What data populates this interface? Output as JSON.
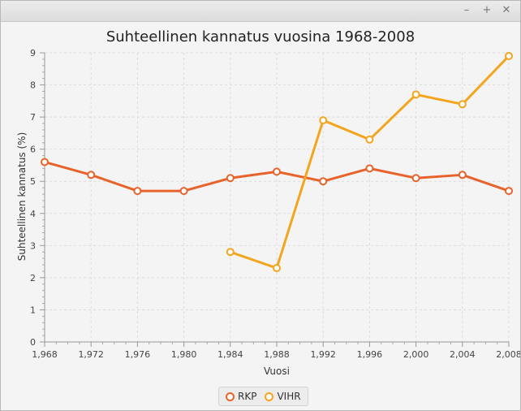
{
  "window": {
    "minimize_glyph": "–",
    "maximize_glyph": "+",
    "close_glyph": "✕"
  },
  "chart_data": {
    "type": "line",
    "title": "Suhteellinen kannatus vuosina 1968-2008",
    "xlabel": "Vuosi",
    "ylabel": "Suhteellinen kannatus (%)",
    "xlim": [
      1968,
      2008
    ],
    "ylim": [
      0,
      9
    ],
    "x_ticks": [
      "1,968",
      "1,972",
      "1,976",
      "1,980",
      "1,984",
      "1,988",
      "1,992",
      "1,996",
      "2,000",
      "2,004",
      "2,008"
    ],
    "y_ticks": [
      "0",
      "1",
      "2",
      "3",
      "4",
      "5",
      "6",
      "7",
      "8",
      "9"
    ],
    "grid": true,
    "legend_position": "bottom",
    "series": [
      {
        "name": "RKP",
        "color": "#e8632b",
        "x": [
          1968,
          1972,
          1976,
          1980,
          1984,
          1988,
          1992,
          1996,
          2000,
          2004,
          2008
        ],
        "values": [
          5.6,
          5.2,
          4.7,
          4.7,
          5.1,
          5.3,
          5.0,
          5.4,
          5.1,
          5.2,
          4.7
        ]
      },
      {
        "name": "VIHR",
        "color": "#f3a51f",
        "x": [
          1984,
          1988,
          1992,
          1996,
          2000,
          2004,
          2008
        ],
        "values": [
          2.8,
          2.3,
          6.9,
          6.3,
          7.7,
          7.4,
          8.9
        ]
      }
    ]
  }
}
